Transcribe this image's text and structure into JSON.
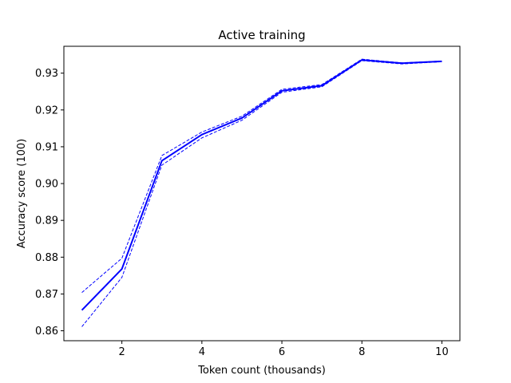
{
  "chart_data": {
    "type": "line",
    "title": "Active training",
    "xlabel": "Token count (thousands)",
    "ylabel": "Accuracy score (100)",
    "xlim": [
      0.55,
      10.45
    ],
    "ylim": [
      0.8573,
      0.9373
    ],
    "x_ticks": [
      2,
      4,
      6,
      8,
      10
    ],
    "y_ticks": [
      0.86,
      0.87,
      0.88,
      0.89,
      0.9,
      0.91,
      0.92,
      0.93
    ],
    "x_tick_labels": [
      "2",
      "4",
      "6",
      "8",
      "10"
    ],
    "y_tick_labels": [
      "0.86",
      "0.87",
      "0.88",
      "0.89",
      "0.90",
      "0.91",
      "0.92",
      "0.93"
    ],
    "grid": false,
    "colors": {
      "series": "#0000ff"
    },
    "x": [
      1,
      2,
      3,
      4,
      5,
      6,
      7,
      8,
      9,
      10
    ],
    "series": [
      {
        "role": "mean",
        "style": "solid",
        "values": [
          0.8656,
          0.8768,
          0.9062,
          0.9133,
          0.9178,
          0.9252,
          0.9266,
          0.9336,
          0.9327,
          0.9332
        ]
      },
      {
        "role": "upper",
        "style": "dashed",
        "values": [
          0.8704,
          0.8797,
          0.9076,
          0.914,
          0.9183,
          0.9256,
          0.9269,
          0.9338,
          0.9328,
          0.9333
        ]
      },
      {
        "role": "lower",
        "style": "dashed",
        "values": [
          0.8611,
          0.8745,
          0.905,
          0.9124,
          0.9172,
          0.9248,
          0.9263,
          0.9334,
          0.9325,
          0.9331
        ]
      }
    ]
  }
}
